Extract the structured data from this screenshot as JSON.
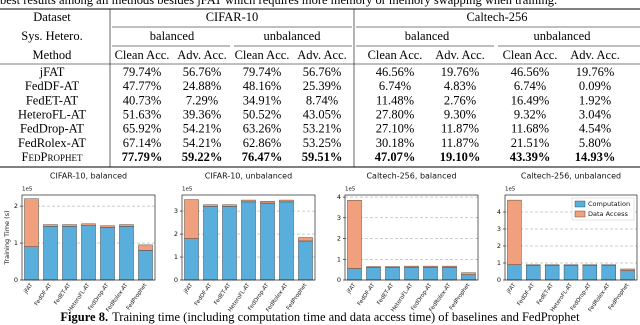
{
  "text": {
    "intro": "best results among all methods besides jFAT which requires more memory or memory swapping when training."
  },
  "table": {
    "header": {
      "dataset": "Dataset",
      "datasets": [
        "CIFAR-10",
        "Caltech-256"
      ],
      "hetero": "Sys. Hetero.",
      "settings": [
        "balanced",
        "unbalanced",
        "balanced",
        "unbalanced"
      ],
      "method": "Method",
      "metrics": [
        "Clean Acc.",
        "Adv. Acc.",
        "Clean Acc.",
        "Adv. Acc.",
        "Clean Acc.",
        "Adv. Acc.",
        "Clean Acc.",
        "Adv. Acc."
      ]
    },
    "rows": [
      [
        "jFAT",
        "79.74%",
        "56.76%",
        "79.74%",
        "56.76%",
        "46.56%",
        "19.76%",
        "46.56%",
        "19.76%"
      ],
      [
        "FedDF-AT",
        "47.77%",
        "24.88%",
        "48.16%",
        "25.39%",
        "6.74%",
        "4.83%",
        "6.74%",
        "0.09%"
      ],
      [
        "FedET-AT",
        "40.73%",
        "7.29%",
        "34.91%",
        "8.74%",
        "11.48%",
        "2.76%",
        "16.49%",
        "1.92%"
      ],
      [
        "HeteroFL-AT",
        "51.63%",
        "39.36%",
        "50.52%",
        "43.05%",
        "27.80%",
        "9.30%",
        "9.32%",
        "3.04%"
      ],
      [
        "FedDrop-AT",
        "65.92%",
        "54.21%",
        "63.26%",
        "53.21%",
        "27.10%",
        "11.87%",
        "11.68%",
        "4.54%"
      ],
      [
        "FedRolex-AT",
        "67.14%",
        "54.21%",
        "62.86%",
        "53.25%",
        "30.18%",
        "11.87%",
        "21.51%",
        "5.80%"
      ],
      [
        "FedProphet",
        "77.79%",
        "59.22%",
        "76.47%",
        "59.51%",
        "47.07%",
        "19.10%",
        "43.39%",
        "14.93%"
      ]
    ]
  },
  "chart_data": [
    {
      "type": "bar",
      "stacked": true,
      "title": "CIFAR-10, balanced",
      "ylabel": "Training Time (s)",
      "offset_label": "1e5",
      "categories": [
        "jFAT",
        "FedDF-AT",
        "FedET-AT",
        "HeteroFL-AT",
        "FedDrop-AT",
        "FedRolex-AT",
        "FedProphet"
      ],
      "series": [
        {
          "color": "#5aaedb",
          "values": [
            0.9,
            1.45,
            1.45,
            1.47,
            1.42,
            1.45,
            0.8
          ]
        },
        {
          "color": "#f0a07c",
          "values": [
            1.3,
            0.05,
            0.05,
            0.05,
            0.05,
            0.05,
            0.15
          ]
        }
      ],
      "ylim": [
        0,
        2.3
      ],
      "yticks": [
        0,
        1,
        2
      ],
      "grid": true
    },
    {
      "type": "bar",
      "stacked": true,
      "title": "CIFAR-10, unbalanced",
      "offset_label": "1e5",
      "categories": [
        "jFAT",
        "FedDF-AT",
        "FedET-AT",
        "HeteroFL-AT",
        "FedDrop-AT",
        "FedRolex-AT",
        "FedProphet"
      ],
      "series": [
        {
          "color": "#5aaedb",
          "values": [
            1.8,
            3.2,
            3.2,
            3.4,
            3.35,
            3.4,
            1.7
          ]
        },
        {
          "color": "#f0a07c",
          "values": [
            1.7,
            0.08,
            0.08,
            0.08,
            0.08,
            0.08,
            0.15
          ]
        }
      ],
      "ylim": [
        0,
        3.7
      ],
      "yticks": [
        0,
        1,
        2,
        3
      ],
      "grid": true
    },
    {
      "type": "bar",
      "stacked": true,
      "title": "Caltech-256, balanced",
      "offset_label": "1e5",
      "categories": [
        "jFAT",
        "FedDF-AT",
        "FedET-AT",
        "HeteroFL-AT",
        "FedDrop-AT",
        "FedRolex-AT",
        "FedProphet"
      ],
      "series": [
        {
          "color": "#5aaedb",
          "values": [
            0.55,
            0.6,
            0.6,
            0.62,
            0.62,
            0.62,
            0.25
          ]
        },
        {
          "color": "#f0a07c",
          "values": [
            3.3,
            0.05,
            0.05,
            0.05,
            0.05,
            0.05,
            0.1
          ]
        }
      ],
      "ylim": [
        0,
        4.1
      ],
      "yticks": [
        0,
        1,
        2,
        3,
        4
      ],
      "grid": true
    },
    {
      "type": "bar",
      "stacked": true,
      "title": "Caltech-256, unbalanced",
      "offset_label": "1e5",
      "categories": [
        "jFAT",
        "FedDF-AT",
        "FedET-AT",
        "HeteroFL-AT",
        "FedDrop-AT",
        "FedRolex-AT",
        "FedProphet"
      ],
      "series": [
        {
          "name": "Computation",
          "color": "#5aaedb",
          "values": [
            0.9,
            0.85,
            0.85,
            0.85,
            0.85,
            0.85,
            0.55
          ]
        },
        {
          "name": "Data Access",
          "color": "#f0a07c",
          "values": [
            3.8,
            0.05,
            0.05,
            0.05,
            0.05,
            0.05,
            0.1
          ]
        }
      ],
      "ylim": [
        0,
        5
      ],
      "yticks": [
        0,
        1,
        2,
        3,
        4
      ],
      "grid": true,
      "legend": "upper right"
    }
  ],
  "caption": {
    "label": "Figure 8.",
    "text": "Training time (including computation time and data access time) of baselines and FedProphet"
  }
}
